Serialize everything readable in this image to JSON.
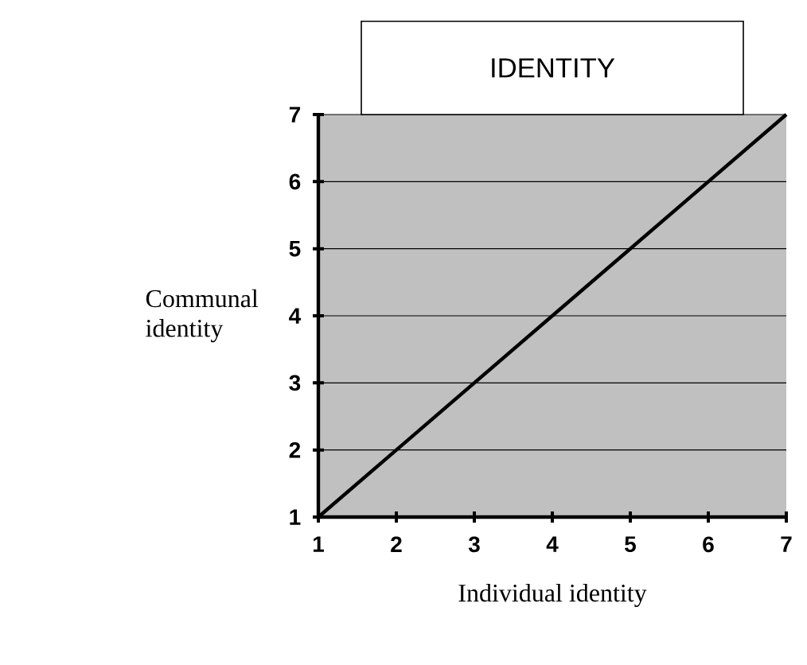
{
  "chart_data": {
    "type": "line",
    "title": "IDENTITY",
    "xlabel": "Individual identity",
    "ylabel": "Communal identity",
    "x": [
      1,
      7
    ],
    "series": [
      {
        "color": "#000000",
        "values": [
          1,
          7
        ]
      }
    ],
    "xlim": [
      1,
      7
    ],
    "ylim": [
      1,
      7
    ],
    "xticks": [
      1,
      2,
      3,
      4,
      5,
      6,
      7
    ],
    "yticks": [
      1,
      2,
      3,
      4,
      5,
      6,
      7
    ],
    "grid": "y",
    "line_style": "solid"
  }
}
